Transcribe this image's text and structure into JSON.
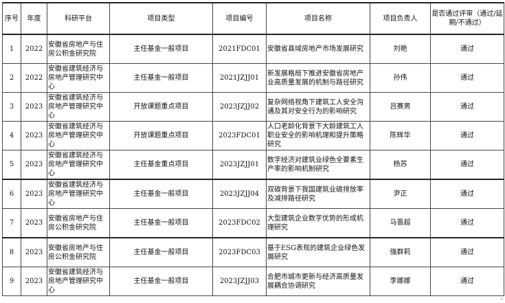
{
  "headers": [
    "序号",
    "年度",
    "科研平台",
    "项目类型",
    "项目编号",
    "项目名称",
    "项目负责人",
    "是否通过评审（通过/延期/不通过）"
  ],
  "rows": [
    [
      "1",
      "2022",
      "安徽省房地产与住房公积金研究院",
      "主任基金一般项目",
      "2021FDC01",
      "安徽省县域房地产市场发展研究",
      "刘艳",
      "通过"
    ],
    [
      "2",
      "2022",
      "安徽省建筑经济与房地产管理研究中心",
      "主任基金一般项目",
      "2021JZJJ01",
      "新发展格局下推进安徽省房地产业高质量发展的机制与路径研究",
      "孙伟",
      "通过"
    ],
    [
      "3",
      "2023",
      "安徽省建筑经济与房地产管理研究中心",
      "开放课题重点项目",
      "2023JZJJ02",
      "复杂网络视角下建筑工人安全沟通及其对安全行为的影响研究",
      "吕赛男",
      "通过"
    ],
    [
      "4",
      "2023",
      "安徽省建筑经济与房地产管理研究中心",
      "开放课题重点项目",
      "2023FDC01",
      "人口老龄化背景下大龄建筑工人职业安全的影响机理和提升策略研究",
      "陈辉华",
      "通过"
    ],
    [
      "5",
      "2023",
      "安徽省建筑经济与房地产管理研究中心",
      "主任基金重点项目",
      "2023JZJJ01",
      "数字经济对建筑业绿色全要素生产率的影响机制研究",
      "杨苏",
      "通过"
    ],
    [
      "6",
      "2023",
      "安徽省建筑经济与房地产管理研究中心",
      "主任基金一般项目",
      "2023JZJJ04",
      "双碳背景下我国建筑业碳排放率及减排路径研究",
      "尹正",
      "通过"
    ],
    [
      "7",
      "2023",
      "安徽省房地产与住房公积金研究院",
      "主任基金一般项目",
      "2023FDC02",
      "大型建筑企业数字优势的形成机理研究",
      "马晋超",
      "通过"
    ],
    [
      "8",
      "2023",
      "安徽省房地产与住房公积金研究院",
      "主任基金一般项目",
      "2023FDC03",
      "基于ESG表现的建筑企业绿色发展研究",
      "强群莉",
      "通过"
    ],
    [
      "9",
      "2023",
      "安徽省建筑经济与房地产管理研究中心",
      "主任基金一般项目",
      "2023JZJJ03",
      "合肥市城市更新与经济高质量发展耦合协调研究",
      "李娜娜",
      "通过"
    ]
  ]
}
